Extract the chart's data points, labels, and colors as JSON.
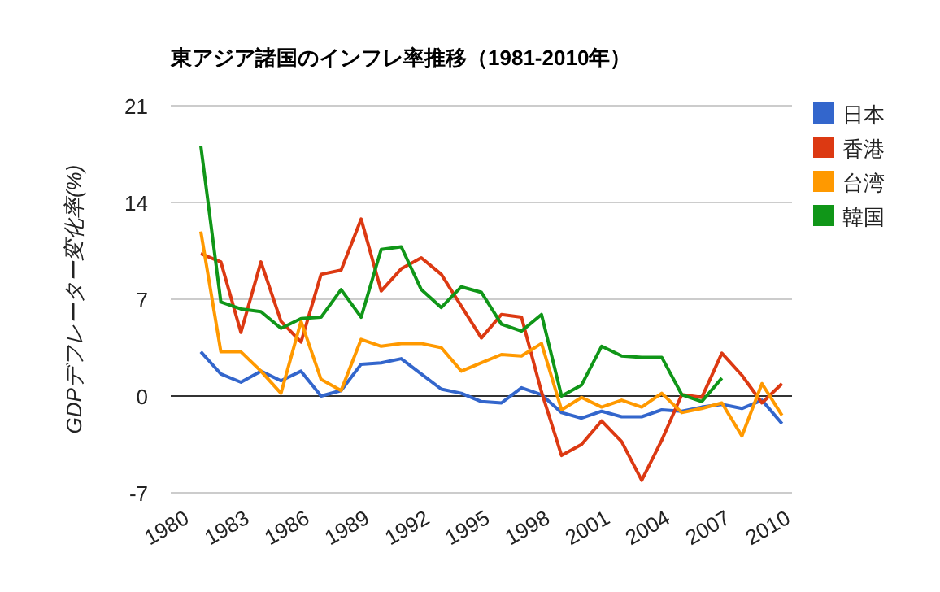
{
  "chart_data": {
    "type": "line",
    "title": "東アジア諸国のインフレ率推移（1981-2010年）",
    "ylabel": "GDPデフレーター変化率(%)",
    "x": [
      1981,
      1982,
      1983,
      1984,
      1985,
      1986,
      1987,
      1988,
      1989,
      1990,
      1991,
      1992,
      1993,
      1994,
      1995,
      1996,
      1997,
      1998,
      1999,
      2000,
      2001,
      2002,
      2003,
      2004,
      2005,
      2006,
      2007,
      2008,
      2009,
      2010
    ],
    "series": [
      {
        "name": "日本",
        "color": "#3366cc",
        "values": [
          3.2,
          1.6,
          1.0,
          1.8,
          1.1,
          1.8,
          0,
          0.4,
          2.3,
          2.4,
          2.7,
          1.6,
          0.5,
          0.2,
          -0.4,
          -0.5,
          0.6,
          0.1,
          -1.2,
          -1.6,
          -1.1,
          -1.5,
          -1.5,
          -1.0,
          -1.1,
          -0.8,
          -0.6,
          -0.9,
          -0.3,
          -2.0
        ]
      },
      {
        "name": "香港",
        "color": "#dc3912",
        "values": [
          10.3,
          9.7,
          4.6,
          9.7,
          5.4,
          3.9,
          8.8,
          9.1,
          12.8,
          7.6,
          9.2,
          10.0,
          8.8,
          6.5,
          4.2,
          5.9,
          5.7,
          0.3,
          -4.3,
          -3.5,
          -1.8,
          -3.3,
          -6.1,
          -3.2,
          0.1,
          -0.1,
          3.1,
          1.5,
          -0.5,
          0.9
        ]
      },
      {
        "name": "台湾",
        "color": "#ff9900",
        "values": [
          11.9,
          3.2,
          3.2,
          1.8,
          0.2,
          5.4,
          1.2,
          0.4,
          4.1,
          3.6,
          3.8,
          3.8,
          3.5,
          1.8,
          2.4,
          3.0,
          2.9,
          3.8,
          -1.0,
          -0.1,
          -0.8,
          -0.3,
          -0.8,
          0.2,
          -1.2,
          -0.9,
          -0.5,
          -2.9,
          0.9,
          -1.4
        ]
      },
      {
        "name": "韓国",
        "color": "#109618",
        "values": [
          18.1,
          6.8,
          6.3,
          6.1,
          4.9,
          5.6,
          5.7,
          7.7,
          5.7,
          10.6,
          10.8,
          7.7,
          6.4,
          7.9,
          7.5,
          5.2,
          4.7,
          5.9,
          0,
          0.8,
          3.6,
          2.9,
          2.8,
          2.8,
          0.1,
          -0.4,
          1.3,
          null,
          null,
          null
        ]
      }
    ],
    "xlim": [
      1979.5,
      2010.5
    ],
    "xticks": [
      1980,
      1983,
      1986,
      1989,
      1992,
      1995,
      1998,
      2001,
      2004,
      2007,
      2010
    ],
    "ylim": [
      -7,
      21
    ],
    "yticks": [
      21,
      14,
      7,
      0,
      -7
    ],
    "grid": "y",
    "legend": "right"
  }
}
